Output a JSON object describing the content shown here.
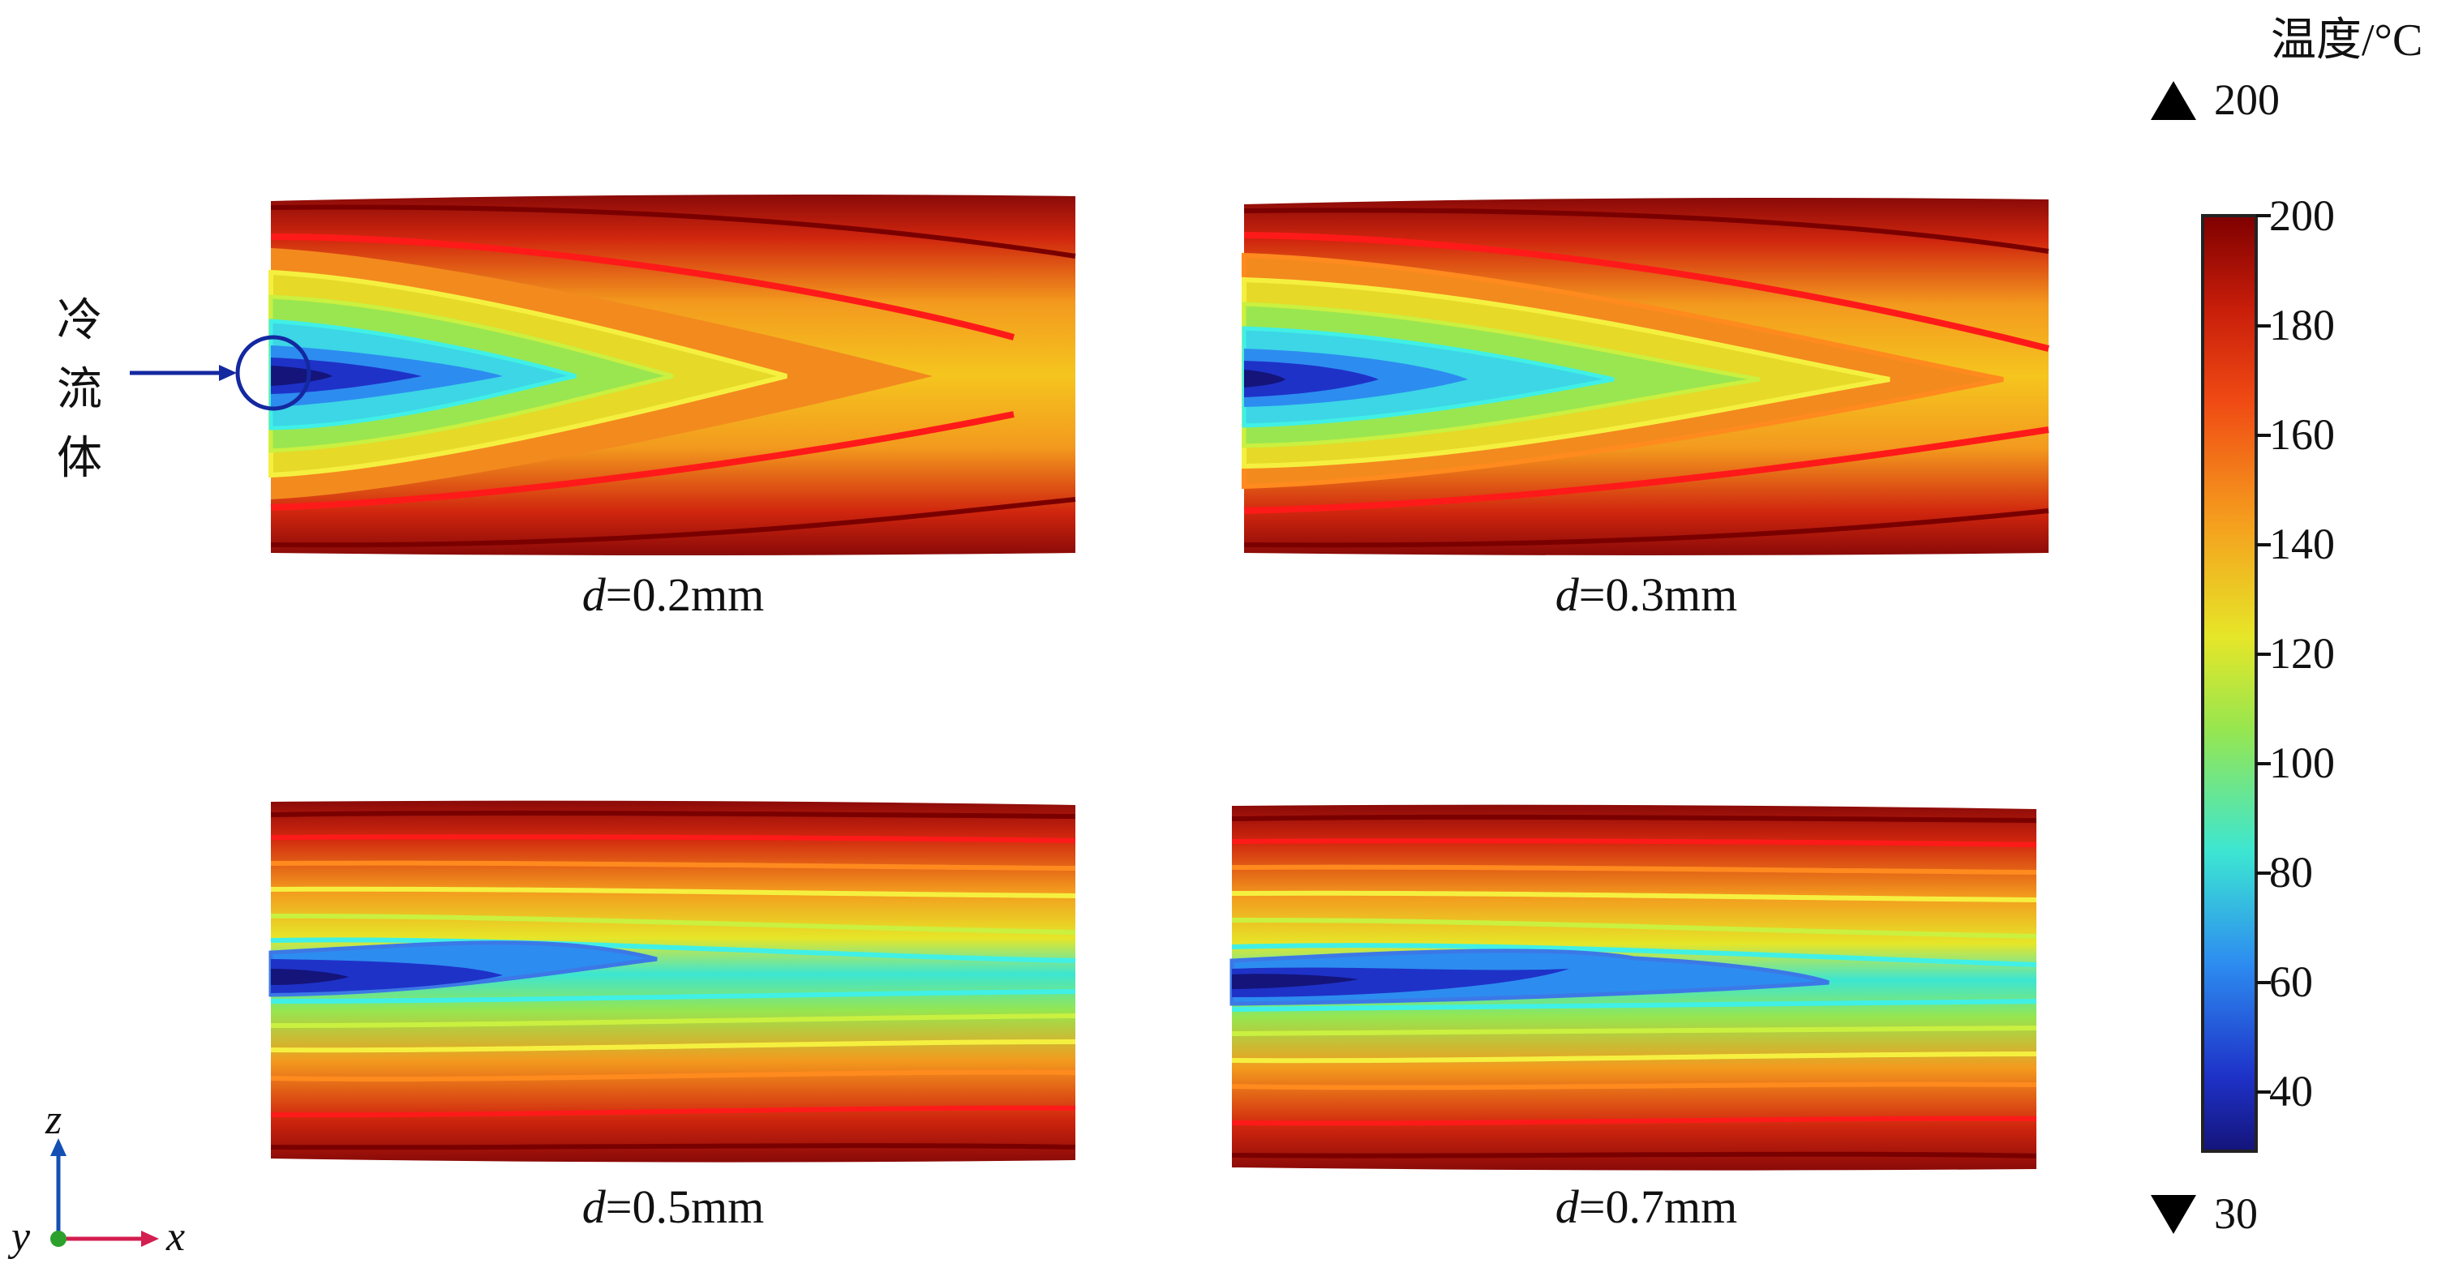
{
  "panels": [
    {
      "id": "p1",
      "label_var": "d",
      "label_val": "=0.2mm",
      "len": 0.82
    },
    {
      "id": "p2",
      "label_var": "d",
      "label_val": "=0.3mm",
      "len": 0.92
    },
    {
      "id": "p3",
      "label_var": "d",
      "label_val": "=0.5mm",
      "len": 1.0
    },
    {
      "id": "p4",
      "label_var": "d",
      "label_val": "=0.7mm",
      "len": 1.0
    }
  ],
  "colorbar": {
    "title": "温度/°C",
    "max_indicator": "200",
    "min_indicator": "30",
    "ticks": [
      "200",
      "180",
      "160",
      "140",
      "120",
      "100",
      "80",
      "60",
      "40"
    ],
    "colors": [
      "#7f0000",
      "#c81e0a",
      "#f04b14",
      "#f5a01e",
      "#e6e628",
      "#96e650",
      "#3ce6d2",
      "#2d8cf0",
      "#1e32c8",
      "#14147a"
    ]
  },
  "annotation": {
    "chars": [
      "冷",
      "流",
      "体"
    ],
    "arrow_color": "#1428a0"
  },
  "axes": {
    "z": "z",
    "x": "x",
    "y": "y",
    "z_color": "#1450b4",
    "x_color": "#d21e50",
    "y_color": "#2ca02c"
  }
}
